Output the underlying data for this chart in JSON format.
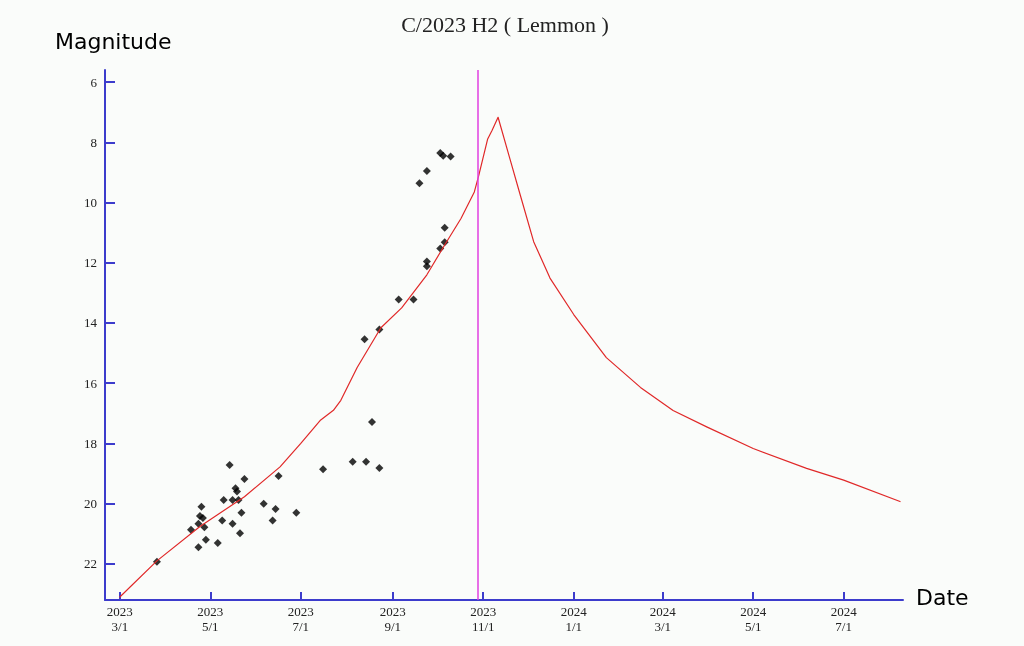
{
  "chart_data": {
    "type": "scatter",
    "title": "C/2023 H2 ( Lemmon )",
    "xlabel": "Date",
    "ylabel": "Magnitude",
    "xlim": [
      "2023-02-19",
      "2024-08-10"
    ],
    "ylim": [
      23.2,
      5.6
    ],
    "xticks": [
      {
        "value": "2023-03-01",
        "label": "2023\n3/1"
      },
      {
        "value": "2023-05-01",
        "label": "2023\n5/1"
      },
      {
        "value": "2023-07-01",
        "label": "2023\n7/1"
      },
      {
        "value": "2023-09-01",
        "label": "2023\n9/1"
      },
      {
        "value": "2023-11-01",
        "label": "2023\n11/1"
      },
      {
        "value": "2024-01-01",
        "label": "2024\n1/1"
      },
      {
        "value": "2024-03-01",
        "label": "2024\n3/1"
      },
      {
        "value": "2024-05-01",
        "label": "2024\n5/1"
      },
      {
        "value": "2024-07-01",
        "label": "2024\n7/1"
      }
    ],
    "yticks": [
      6,
      8,
      10,
      12,
      14,
      16,
      18,
      20,
      22
    ],
    "grid": false,
    "series": [
      {
        "type": "line",
        "color": "#e02828",
        "marker": "none",
        "line_style": "solid",
        "x": [
          "2023-03-01",
          "2023-03-26",
          "2023-04-24",
          "2023-05-24",
          "2023-06-17",
          "2023-07-01",
          "2023-07-14",
          "2023-07-23",
          "2023-07-28",
          "2023-08-08",
          "2023-08-24",
          "2023-09-07",
          "2023-09-24",
          "2023-10-06",
          "2023-10-17",
          "2023-10-26",
          "2023-10-29",
          "2023-11-04",
          "2023-11-07",
          "2023-11-11",
          "2023-11-19",
          "2023-11-26",
          "2023-12-05",
          "2023-12-16",
          "2024-01-01",
          "2024-01-23",
          "2024-02-15",
          "2024-03-08",
          "2024-03-31",
          "2024-05-01",
          "2024-06-06",
          "2024-07-01",
          "2024-08-08"
        ],
        "values": [
          23.1,
          21.9,
          20.76,
          19.77,
          18.78,
          18.0,
          17.24,
          16.9,
          16.57,
          15.48,
          14.16,
          13.5,
          12.4,
          11.41,
          10.53,
          9.65,
          9.1,
          7.89,
          7.6,
          7.17,
          8.55,
          9.76,
          11.3,
          12.51,
          13.72,
          15.15,
          16.14,
          16.91,
          17.46,
          18.17,
          18.83,
          19.22,
          19.93
        ]
      },
      {
        "color": "#000000",
        "marker": "diamond",
        "x": [
          "2023-03-26",
          "2023-04-18",
          "2023-04-23",
          "2023-04-23",
          "2023-04-24",
          "2023-04-25",
          "2023-04-27",
          "2023-04-26",
          "2023-04-28",
          "2023-05-06",
          "2023-05-09",
          "2023-05-10",
          "2023-05-14",
          "2023-05-16",
          "2023-05-16",
          "2023-05-20",
          "2023-05-18",
          "2023-05-19",
          "2023-05-21",
          "2023-05-22",
          "2023-05-24",
          "2023-06-06",
          "2023-06-12",
          "2023-06-14",
          "2023-06-16",
          "2023-06-28",
          "2023-07-16",
          "2023-08-05",
          "2023-08-14",
          "2023-08-18",
          "2023-08-23",
          "2023-08-13",
          "2023-08-23",
          "2023-09-05",
          "2023-09-15",
          "2023-09-19",
          "2023-09-24",
          "2023-09-24",
          "2023-09-24",
          "2023-10-03",
          "2023-10-06",
          "2023-10-06",
          "2023-10-03",
          "2023-10-05",
          "2023-10-10"
        ],
        "values": [
          21.93,
          20.87,
          21.45,
          20.67,
          20.41,
          20.1,
          20.78,
          20.48,
          21.2,
          21.31,
          20.56,
          19.88,
          18.72,
          20.67,
          19.88,
          19.88,
          19.49,
          19.6,
          20.98,
          20.3,
          19.18,
          20.0,
          20.56,
          20.18,
          19.08,
          20.3,
          18.86,
          18.61,
          18.61,
          17.29,
          18.82,
          14.54,
          14.22,
          13.22,
          13.22,
          9.36,
          8.95,
          11.96,
          12.12,
          11.53,
          11.32,
          10.84,
          8.36,
          8.45,
          8.47
        ]
      }
    ],
    "ref_lines": [
      {
        "axis": "x",
        "value": "2023-10-28",
        "color": "#e040e0",
        "line_style": "solid"
      }
    ]
  }
}
